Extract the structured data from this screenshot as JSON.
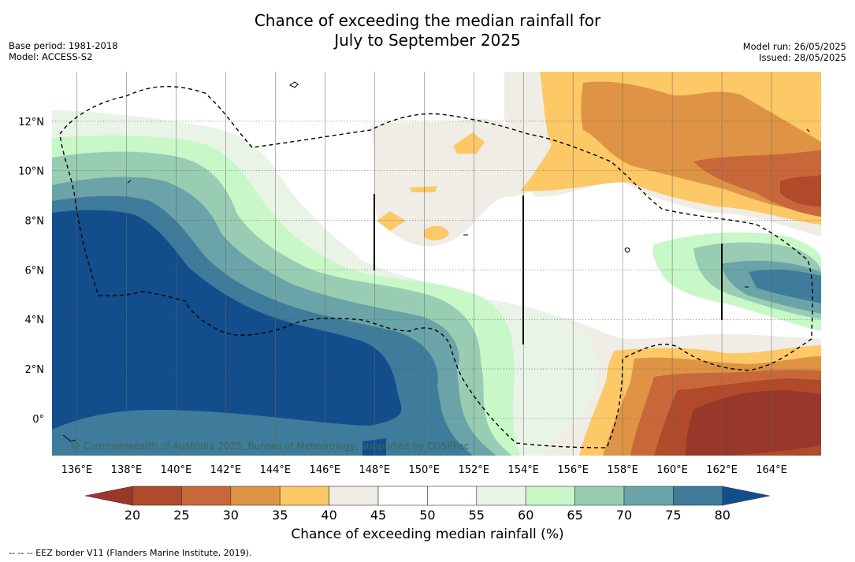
{
  "title_line1": "Chance of exceeding the median rainfall for",
  "title_line2": "July to September 2025",
  "base_period": "Base period: 1981-2018",
  "model": "Model: ACCESS-S2",
  "model_run": "Model run: 26/05/2025",
  "issued": "Issued: 28/05/2025",
  "copyright": "© Commonwealth of Australia 2025, Bureau of Meteorology, supported by COSPPac",
  "colorbar_label": "Chance of exceeding median rainfall (%)",
  "footnote": "--  --  -- EEZ border V11 (Flanders Marine Institute, 2019).",
  "map": {
    "lon_range": [
      135,
      166
    ],
    "lat_range": [
      -1.5,
      14
    ],
    "lon_ticks": [
      "136°E",
      "138°E",
      "140°E",
      "142°E",
      "144°E",
      "146°E",
      "148°E",
      "150°E",
      "152°E",
      "154°E",
      "156°E",
      "158°E",
      "160°E",
      "162°E",
      "164°E"
    ],
    "lat_ticks": [
      "0°",
      "2°N",
      "4°N",
      "6°N",
      "8°N",
      "10°N",
      "12°N"
    ]
  },
  "colorbar": {
    "ticks": [
      "20",
      "25",
      "30",
      "35",
      "40",
      "45",
      "50",
      "55",
      "60",
      "65",
      "70",
      "75",
      "80"
    ],
    "colors": [
      "#b04a2a",
      "#c8683a",
      "#df9445",
      "#fdc866",
      "#f0ece6",
      "#ffffff",
      "#ffffff",
      "#e9f4e7",
      "#c8f7c8",
      "#98cdb4",
      "#6aa4a8",
      "#3f7b9b",
      "#134e8c"
    ],
    "under_color": "#98382a",
    "over_color": "#134e8c"
  },
  "colors": {
    "deep_blue": "#134e8c",
    "dark_brown": "#98382a"
  }
}
